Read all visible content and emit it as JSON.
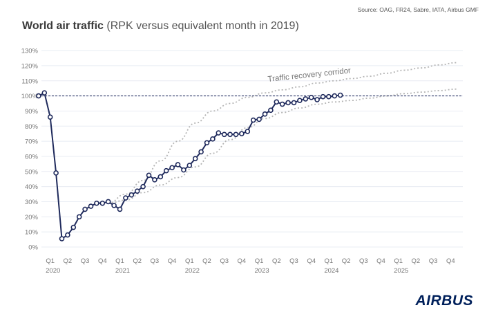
{
  "header": {
    "source": "Source: OAG, FR24, Sabre, IATA, Airbus GMF",
    "title_bold": "World air traffic",
    "title_rest": "(RPK versus equivalent month in 2019)"
  },
  "logo": "AIRBUS",
  "colors": {
    "series": "#1f2a5c",
    "corridor": "#b5b5b5",
    "grid": "#e8ecf3",
    "reference": "#1f2a5c"
  },
  "chart_data": {
    "type": "line",
    "title": "World air traffic (RPK versus equivalent month in 2019)",
    "xlabel": "",
    "ylabel": "",
    "ylim": [
      0,
      130
    ],
    "yticks": [
      "0%",
      "10%",
      "20%",
      "30%",
      "40%",
      "50%",
      "60%",
      "70%",
      "80%",
      "90%",
      "100%",
      "110%",
      "120%",
      "130%"
    ],
    "grid": true,
    "reference_line": 100,
    "xticks": [
      {
        "q": "Q1",
        "year": "2020",
        "month": "2020-02"
      },
      {
        "q": "Q2",
        "year": "",
        "month": "2020-05"
      },
      {
        "q": "Q3",
        "year": "",
        "month": "2020-08"
      },
      {
        "q": "Q4",
        "year": "",
        "month": "2020-11"
      },
      {
        "q": "Q1",
        "year": "2021",
        "month": "2021-02"
      },
      {
        "q": "Q2",
        "year": "",
        "month": "2021-05"
      },
      {
        "q": "Q3",
        "year": "",
        "month": "2021-08"
      },
      {
        "q": "Q4",
        "year": "",
        "month": "2021-11"
      },
      {
        "q": "Q1",
        "year": "2022",
        "month": "2022-02"
      },
      {
        "q": "Q2",
        "year": "",
        "month": "2022-05"
      },
      {
        "q": "Q3",
        "year": "",
        "month": "2022-08"
      },
      {
        "q": "Q4",
        "year": "",
        "month": "2022-11"
      },
      {
        "q": "Q1",
        "year": "2023",
        "month": "2023-02"
      },
      {
        "q": "Q2",
        "year": "",
        "month": "2023-05"
      },
      {
        "q": "Q3",
        "year": "",
        "month": "2023-08"
      },
      {
        "q": "Q4",
        "year": "",
        "month": "2023-11"
      },
      {
        "q": "Q1",
        "year": "2024",
        "month": "2024-02"
      },
      {
        "q": "Q2",
        "year": "",
        "month": "2024-05"
      },
      {
        "q": "Q3",
        "year": "",
        "month": "2024-08"
      },
      {
        "q": "Q4",
        "year": "",
        "month": "2024-11"
      },
      {
        "q": "Q1",
        "year": "2025",
        "month": "2025-02"
      },
      {
        "q": "Q2",
        "year": "",
        "month": "2025-05"
      },
      {
        "q": "Q3",
        "year": "",
        "month": "2025-08"
      },
      {
        "q": "Q4",
        "year": "",
        "month": "2025-11"
      }
    ],
    "series": [
      {
        "x": [
          "2019-12",
          "2020-01",
          "2020-02",
          "2020-03",
          "2020-04",
          "2020-05",
          "2020-06",
          "2020-07",
          "2020-08",
          "2020-09",
          "2020-10",
          "2020-11",
          "2020-12",
          "2021-01",
          "2021-02",
          "2021-03",
          "2021-04",
          "2021-05",
          "2021-06",
          "2021-07",
          "2021-08",
          "2021-09",
          "2021-10",
          "2021-11",
          "2021-12",
          "2022-01",
          "2022-02",
          "2022-03",
          "2022-04",
          "2022-05",
          "2022-06",
          "2022-07",
          "2022-08",
          "2022-09",
          "2022-10",
          "2022-11",
          "2022-12",
          "2023-01",
          "2023-02",
          "2023-03",
          "2023-04",
          "2023-05",
          "2023-06",
          "2023-07",
          "2023-08",
          "2023-09",
          "2023-10",
          "2023-11",
          "2023-12",
          "2024-01",
          "2024-02",
          "2024-03",
          "2024-04"
        ],
        "values": [
          100,
          102,
          86,
          49,
          5.5,
          8,
          13,
          20,
          25,
          27,
          29,
          29,
          30,
          27.5,
          25,
          32.5,
          34.5,
          37,
          40,
          47.5,
          44.5,
          46.5,
          50.5,
          52.5,
          54.5,
          51,
          54,
          58.5,
          63,
          69,
          71.5,
          75.5,
          74.5,
          74.5,
          74.5,
          75,
          76.5,
          84,
          84.5,
          88,
          90.5,
          96,
          94.5,
          95.5,
          95.5,
          97,
          98,
          99,
          97.5,
          99.5,
          99.5,
          100,
          100.5
        ]
      }
    ],
    "corridor": {
      "label": "Traffic recovery corridor",
      "upper": {
        "x": [
          "2020-12",
          "2021-03",
          "2021-06",
          "2021-09",
          "2021-12",
          "2022-03",
          "2022-06",
          "2022-09",
          "2022-12",
          "2023-03",
          "2023-06",
          "2023-09",
          "2023-12",
          "2024-03",
          "2024-06",
          "2024-09",
          "2024-12",
          "2025-03",
          "2025-06",
          "2025-09",
          "2025-12"
        ],
        "values": [
          29,
          35,
          44,
          57,
          70,
          82,
          90,
          95,
          99,
          102,
          104,
          106,
          108.5,
          110,
          111.5,
          113,
          115,
          117,
          118.5,
          120.5,
          122
        ]
      },
      "lower": {
        "x": [
          "2020-12",
          "2021-03",
          "2021-06",
          "2021-09",
          "2021-12",
          "2022-03",
          "2022-06",
          "2022-09",
          "2022-12",
          "2023-03",
          "2023-06",
          "2023-09",
          "2023-12",
          "2024-03",
          "2024-06",
          "2024-09",
          "2024-12",
          "2025-03",
          "2025-06",
          "2025-09",
          "2025-12"
        ],
        "values": [
          29,
          31,
          36,
          41,
          46,
          53,
          62,
          71,
          79,
          85,
          89,
          92,
          94.5,
          96,
          97,
          98.5,
          100,
          101.5,
          102.5,
          103.5,
          104.5
        ]
      }
    }
  }
}
